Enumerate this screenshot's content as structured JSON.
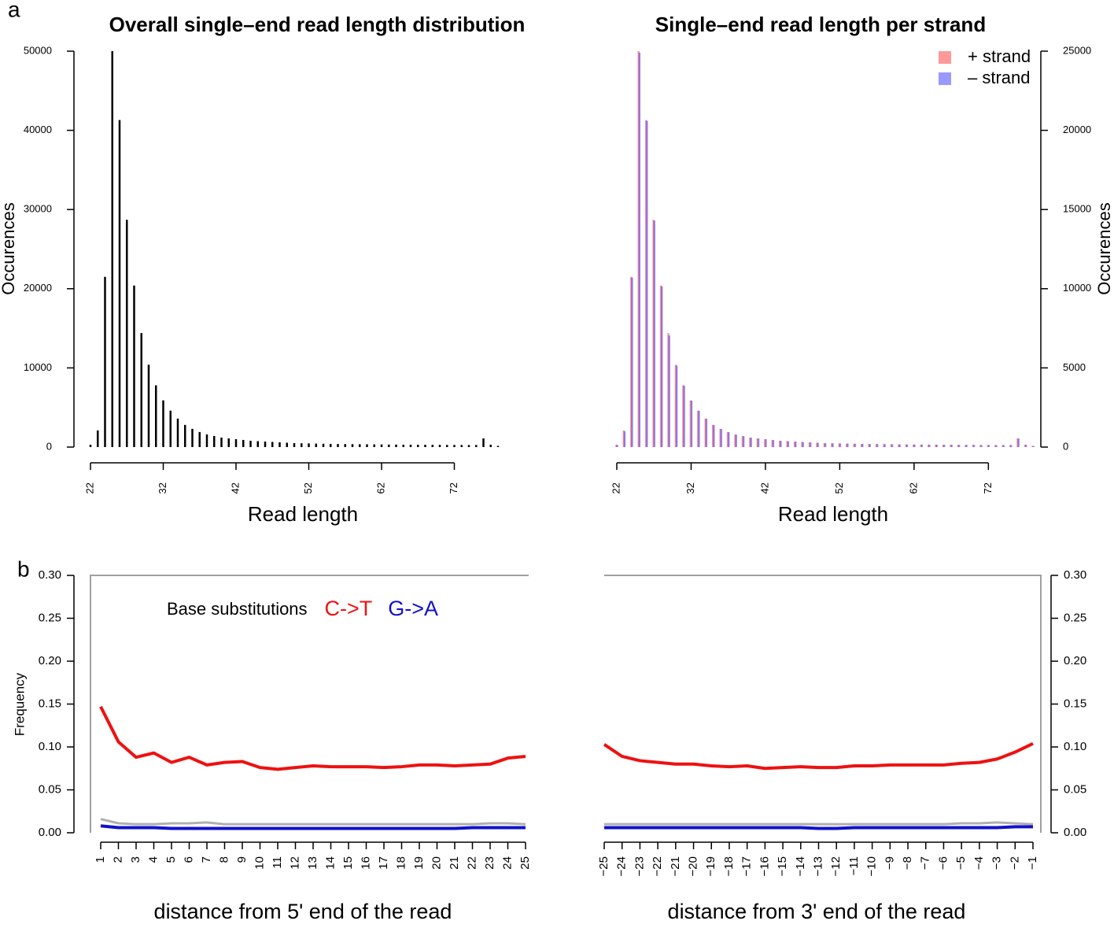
{
  "chart_data": [
    {
      "type": "bar",
      "panel_label": "a",
      "title": "Overall single–end read length distribution",
      "x_label": "Read length",
      "y_label": "Occurences",
      "y_axis_side": "left",
      "x": [
        22,
        23,
        24,
        25,
        26,
        27,
        28,
        29,
        30,
        31,
        32,
        33,
        34,
        35,
        36,
        37,
        38,
        39,
        40,
        41,
        42,
        43,
        44,
        45,
        46,
        47,
        48,
        49,
        50,
        51,
        52,
        53,
        54,
        55,
        56,
        57,
        58,
        59,
        60,
        61,
        62,
        63,
        64,
        65,
        66,
        67,
        68,
        69,
        70,
        71,
        72,
        73,
        74,
        75,
        76,
        77,
        78
      ],
      "values": [
        300,
        2100,
        21500,
        50000,
        41300,
        28700,
        20400,
        14400,
        10400,
        7800,
        5900,
        4600,
        3600,
        2800,
        2300,
        1900,
        1600,
        1400,
        1200,
        1100,
        1000,
        900,
        800,
        750,
        700,
        650,
        600,
        550,
        500,
        480,
        460,
        440,
        420,
        400,
        390,
        380,
        370,
        360,
        350,
        340,
        330,
        320,
        310,
        300,
        300,
        290,
        290,
        280,
        280,
        270,
        270,
        260,
        260,
        260,
        1100,
        300,
        150
      ],
      "color": "#000000",
      "xlim": [
        22,
        78
      ],
      "xticks": [
        22,
        32,
        42,
        52,
        62,
        72
      ],
      "ylim": [
        0,
        50000
      ],
      "yticks": [
        0,
        10000,
        20000,
        30000,
        40000,
        50000
      ]
    },
    {
      "type": "bar",
      "title": "Single–end read length per strand",
      "x_label": "Read length",
      "y_label": "Occurences",
      "y_axis_side": "right",
      "legend": "top-right",
      "x": [
        22,
        23,
        24,
        25,
        26,
        27,
        28,
        29,
        30,
        31,
        32,
        33,
        34,
        35,
        36,
        37,
        38,
        39,
        40,
        41,
        42,
        43,
        44,
        45,
        46,
        47,
        48,
        49,
        50,
        51,
        52,
        53,
        54,
        55,
        56,
        57,
        58,
        59,
        60,
        61,
        62,
        63,
        64,
        65,
        66,
        67,
        68,
        69,
        70,
        71,
        72,
        73,
        74,
        75,
        76,
        77,
        78
      ],
      "series": [
        {
          "name": "+ strand",
          "color": "#ff000066",
          "values": [
            150,
            1050,
            10750,
            25000,
            20650,
            14350,
            10200,
            7200,
            5200,
            3900,
            2950,
            2300,
            1800,
            1400,
            1150,
            950,
            800,
            700,
            600,
            550,
            500,
            450,
            400,
            375,
            350,
            325,
            300,
            275,
            250,
            240,
            230,
            220,
            210,
            200,
            195,
            190,
            185,
            180,
            175,
            170,
            165,
            160,
            155,
            150,
            150,
            145,
            145,
            140,
            140,
            135,
            135,
            130,
            130,
            130,
            550,
            150,
            75
          ]
        },
        {
          "name": "– strand",
          "color": "#0000ff66",
          "values": [
            140,
            1000,
            10700,
            24900,
            20600,
            14300,
            10150,
            7050,
            5150,
            3880,
            2930,
            2290,
            1790,
            1390,
            1140,
            940,
            790,
            690,
            595,
            545,
            495,
            445,
            395,
            370,
            345,
            320,
            295,
            270,
            248,
            238,
            228,
            218,
            208,
            198,
            193,
            188,
            183,
            178,
            173,
            168,
            163,
            158,
            153,
            148,
            148,
            143,
            143,
            138,
            138,
            133,
            133,
            128,
            128,
            128,
            540,
            148,
            73
          ]
        }
      ],
      "xlim": [
        22,
        78
      ],
      "xticks": [
        22,
        32,
        42,
        52,
        62,
        72
      ],
      "ylim": [
        0,
        25000
      ],
      "yticks": [
        0,
        5000,
        10000,
        15000,
        20000,
        25000
      ]
    },
    {
      "type": "line",
      "panel_label": "b",
      "x_label": "distance from 5' end of the read",
      "y_label": "Frequency",
      "y_axis_side": "left",
      "legend": "top-left",
      "legend_title": "Base substitutions",
      "x": [
        1,
        2,
        3,
        4,
        5,
        6,
        7,
        8,
        9,
        10,
        11,
        12,
        13,
        14,
        15,
        16,
        17,
        18,
        19,
        20,
        21,
        22,
        23,
        24,
        25
      ],
      "series": [
        {
          "color": "#b0b0b0",
          "values": [
            0.016,
            0.011,
            0.01,
            0.01,
            0.011,
            0.011,
            0.012,
            0.01,
            0.01,
            0.01,
            0.01,
            0.01,
            0.01,
            0.01,
            0.01,
            0.01,
            0.01,
            0.01,
            0.01,
            0.01,
            0.01,
            0.01,
            0.011,
            0.011,
            0.01
          ]
        },
        {
          "name": "C->T",
          "color": "#ee1111",
          "values": [
            0.147,
            0.106,
            0.088,
            0.093,
            0.082,
            0.088,
            0.079,
            0.082,
            0.083,
            0.076,
            0.074,
            0.076,
            0.078,
            0.077,
            0.077,
            0.077,
            0.076,
            0.077,
            0.079,
            0.079,
            0.078,
            0.079,
            0.08,
            0.087,
            0.089
          ]
        },
        {
          "name": "G->A",
          "color": "#1111cc",
          "values": [
            0.008,
            0.006,
            0.006,
            0.006,
            0.005,
            0.005,
            0.005,
            0.005,
            0.005,
            0.005,
            0.005,
            0.005,
            0.005,
            0.005,
            0.005,
            0.005,
            0.005,
            0.005,
            0.005,
            0.005,
            0.005,
            0.006,
            0.006,
            0.006,
            0.006
          ]
        }
      ],
      "xlim": [
        1,
        25
      ],
      "xticks": [
        1,
        2,
        3,
        4,
        5,
        6,
        7,
        8,
        9,
        10,
        11,
        12,
        13,
        14,
        15,
        16,
        17,
        18,
        19,
        20,
        21,
        22,
        23,
        24,
        25
      ],
      "ylim": [
        0,
        0.3
      ],
      "yticks": [
        {
          "value": 0,
          "label": "0.00"
        },
        {
          "value": 0.05,
          "label": "0.05"
        },
        {
          "value": 0.1,
          "label": "0.10"
        },
        {
          "value": 0.15,
          "label": "0.15"
        },
        {
          "value": 0.2,
          "label": "0.20"
        },
        {
          "value": 0.25,
          "label": "0.25"
        },
        {
          "value": 0.3,
          "label": "0.30"
        }
      ]
    },
    {
      "type": "line",
      "x_label": "distance from 3' end of the read",
      "y_axis_side": "right",
      "x": [
        -25,
        -24,
        -23,
        -22,
        -21,
        -20,
        -19,
        -18,
        -17,
        -16,
        -15,
        -14,
        -13,
        -12,
        -11,
        -10,
        -9,
        -8,
        -7,
        -6,
        -5,
        -4,
        -3,
        -2,
        -1
      ],
      "series": [
        {
          "color": "#b0b0b0",
          "values": [
            0.01,
            0.01,
            0.01,
            0.01,
            0.01,
            0.01,
            0.01,
            0.01,
            0.01,
            0.01,
            0.01,
            0.01,
            0.01,
            0.01,
            0.01,
            0.01,
            0.01,
            0.01,
            0.01,
            0.01,
            0.011,
            0.011,
            0.012,
            0.011,
            0.01
          ]
        },
        {
          "color": "#ee1111",
          "values": [
            0.103,
            0.089,
            0.084,
            0.082,
            0.08,
            0.08,
            0.078,
            0.077,
            0.078,
            0.075,
            0.076,
            0.077,
            0.076,
            0.076,
            0.078,
            0.078,
            0.079,
            0.079,
            0.079,
            0.079,
            0.081,
            0.082,
            0.086,
            0.094,
            0.104
          ]
        },
        {
          "color": "#1111cc",
          "values": [
            0.006,
            0.006,
            0.006,
            0.006,
            0.006,
            0.006,
            0.006,
            0.006,
            0.006,
            0.006,
            0.006,
            0.006,
            0.005,
            0.005,
            0.006,
            0.006,
            0.006,
            0.006,
            0.006,
            0.006,
            0.006,
            0.006,
            0.006,
            0.007,
            0.007
          ]
        }
      ],
      "xlim": [
        -25,
        -1
      ],
      "xticks": [
        {
          "value": -25,
          "label": "−25"
        },
        {
          "value": -24,
          "label": "−24"
        },
        {
          "value": -23,
          "label": "−23"
        },
        {
          "value": -22,
          "label": "−22"
        },
        {
          "value": -21,
          "label": "−21"
        },
        {
          "value": -20,
          "label": "−20"
        },
        {
          "value": -19,
          "label": "−19"
        },
        {
          "value": -18,
          "label": "−18"
        },
        {
          "value": -17,
          "label": "−17"
        },
        {
          "value": -16,
          "label": "−16"
        },
        {
          "value": -15,
          "label": "−15"
        },
        {
          "value": -14,
          "label": "−14"
        },
        {
          "value": -13,
          "label": "−13"
        },
        {
          "value": -12,
          "label": "−12"
        },
        {
          "value": -11,
          "label": "−11"
        },
        {
          "value": -10,
          "label": "−10"
        },
        {
          "value": -9,
          "label": "−9"
        },
        {
          "value": -8,
          "label": "−8"
        },
        {
          "value": -7,
          "label": "−7"
        },
        {
          "value": -6,
          "label": "−6"
        },
        {
          "value": -5,
          "label": "−5"
        },
        {
          "value": -4,
          "label": "−4"
        },
        {
          "value": -3,
          "label": "−3"
        },
        {
          "value": -2,
          "label": "−2"
        },
        {
          "value": -1,
          "label": "−1"
        }
      ],
      "ylim": [
        0,
        0.3
      ],
      "yticks": [
        {
          "value": 0,
          "label": "0.00"
        },
        {
          "value": 0.05,
          "label": "0.05"
        },
        {
          "value": 0.1,
          "label": "0.10"
        },
        {
          "value": 0.15,
          "label": "0.15"
        },
        {
          "value": 0.2,
          "label": "0.20"
        },
        {
          "value": 0.25,
          "label": "0.25"
        },
        {
          "value": 0.3,
          "label": "0.30"
        }
      ]
    }
  ]
}
